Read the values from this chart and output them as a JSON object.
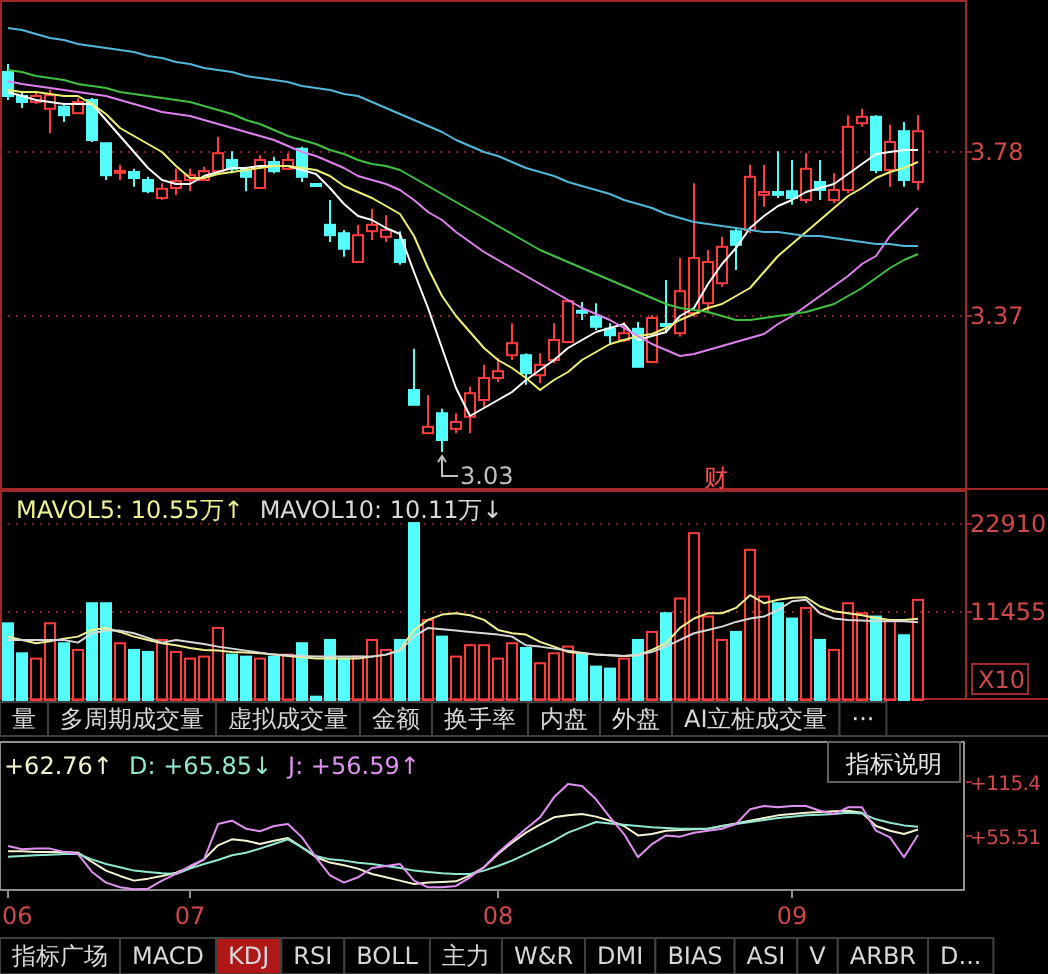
{
  "chart_data": [
    {
      "type": "candlestick",
      "tick_labels": "y",
      "grid": "y",
      "ylim": [
        2.935,
        4.16
      ],
      "yticks": [
        3.37,
        3.78
      ],
      "ohlc": [
        [
          3.98,
          4.0,
          3.91,
          3.92
        ],
        [
          3.92,
          3.93,
          3.89,
          3.905
        ],
        [
          3.905,
          3.93,
          3.9,
          3.92
        ],
        [
          3.888,
          3.935,
          3.827,
          3.922
        ],
        [
          3.893,
          3.9,
          3.855,
          3.872
        ],
        [
          3.877,
          3.915,
          3.877,
          3.905
        ],
        [
          3.91,
          3.915,
          3.805,
          3.81
        ],
        [
          3.802,
          3.802,
          3.71,
          3.722
        ],
        [
          3.728,
          3.748,
          3.71,
          3.733
        ],
        [
          3.73,
          3.738,
          3.693,
          3.715
        ],
        [
          3.71,
          3.718,
          3.677,
          3.682
        ],
        [
          3.665,
          3.702,
          3.66,
          3.688
        ],
        [
          3.69,
          3.738,
          3.672,
          3.707
        ],
        [
          3.71,
          3.738,
          3.682,
          3.722
        ],
        [
          3.71,
          3.743,
          3.71,
          3.732
        ],
        [
          3.732,
          3.818,
          3.727,
          3.777
        ],
        [
          3.76,
          3.782,
          3.727,
          3.738
        ],
        [
          3.735,
          3.743,
          3.682,
          3.718
        ],
        [
          3.69,
          3.772,
          3.69,
          3.76
        ],
        [
          3.755,
          3.768,
          3.727,
          3.732
        ],
        [
          3.738,
          3.777,
          3.735,
          3.76
        ],
        [
          3.788,
          3.793,
          3.705,
          3.718
        ],
        [
          3.7,
          3.7,
          3.696,
          3.698
        ],
        [
          3.598,
          3.66,
          3.555,
          3.572
        ],
        [
          3.577,
          3.585,
          3.518,
          3.538
        ],
        [
          3.505,
          3.598,
          3.505,
          3.572
        ],
        [
          3.582,
          3.638,
          3.56,
          3.598
        ],
        [
          3.568,
          3.622,
          3.555,
          3.585
        ],
        [
          3.56,
          3.582,
          3.498,
          3.505
        ],
        [
          3.185,
          3.288,
          3.148,
          3.148
        ],
        [
          3.077,
          3.172,
          3.077,
          3.093
        ],
        [
          3.127,
          3.138,
          3.03,
          3.06
        ],
        [
          3.088,
          3.127,
          3.077,
          3.105
        ],
        [
          3.118,
          3.193,
          3.077,
          3.177
        ],
        [
          3.16,
          3.248,
          3.143,
          3.215
        ],
        [
          3.215,
          3.265,
          3.205,
          3.232
        ],
        [
          3.272,
          3.352,
          3.26,
          3.302
        ],
        [
          3.272,
          3.277,
          3.198,
          3.227
        ],
        [
          3.222,
          3.277,
          3.202,
          3.248
        ],
        [
          3.26,
          3.352,
          3.252,
          3.31
        ],
        [
          3.305,
          3.41,
          3.302,
          3.407
        ],
        [
          3.383,
          3.405,
          3.36,
          3.38
        ],
        [
          3.368,
          3.402,
          3.335,
          3.343
        ],
        [
          3.338,
          3.352,
          3.302,
          3.322
        ],
        [
          3.31,
          3.355,
          3.305,
          3.327
        ],
        [
          3.338,
          3.355,
          3.243,
          3.243
        ],
        [
          3.255,
          3.372,
          3.252,
          3.365
        ],
        [
          3.35,
          3.46,
          3.327,
          3.348
        ],
        [
          3.327,
          3.515,
          3.318,
          3.432
        ],
        [
          3.377,
          3.702,
          3.368,
          3.515
        ],
        [
          3.402,
          3.535,
          3.377,
          3.505
        ],
        [
          3.452,
          3.568,
          3.443,
          3.543
        ],
        [
          3.582,
          3.588,
          3.485,
          3.548
        ],
        [
          3.585,
          3.748,
          3.577,
          3.718
        ],
        [
          3.673,
          3.748,
          3.643,
          3.68
        ],
        [
          3.68,
          3.782,
          3.665,
          3.673
        ],
        [
          3.682,
          3.76,
          3.648,
          3.665
        ],
        [
          3.66,
          3.777,
          3.652,
          3.738
        ],
        [
          3.705,
          3.76,
          3.66,
          3.685
        ],
        [
          3.66,
          3.727,
          3.652,
          3.685
        ],
        [
          3.685,
          3.872,
          3.677,
          3.843
        ],
        [
          3.852,
          3.888,
          3.843,
          3.868
        ],
        [
          3.868,
          3.872,
          3.727,
          3.735
        ],
        [
          3.735,
          3.848,
          3.693,
          3.805
        ],
        [
          3.832,
          3.855,
          3.693,
          3.71
        ],
        [
          3.705,
          3.872,
          3.685,
          3.832
        ]
      ],
      "colors": [
        "#54fcfc",
        "#54fcfc",
        "#ff3c3c",
        "#ff3c3c",
        "#54fcfc",
        "#ff3c3c",
        "#54fcfc",
        "#54fcfc",
        "#ff3c3c",
        "#54fcfc",
        "#54fcfc",
        "#ff3c3c",
        "#ff3c3c",
        "#ff3c3c",
        "#ff3c3c",
        "#ff3c3c",
        "#54fcfc",
        "#54fcfc",
        "#ff3c3c",
        "#54fcfc",
        "#ff3c3c",
        "#54fcfc",
        "#54fcfc",
        "#54fcfc",
        "#54fcfc",
        "#ff3c3c",
        "#ff3c3c",
        "#ff3c3c",
        "#54fcfc",
        "#54fcfc",
        "#ff3c3c",
        "#54fcfc",
        "#ff3c3c",
        "#ff3c3c",
        "#ff3c3c",
        "#ff3c3c",
        "#ff3c3c",
        "#54fcfc",
        "#ff3c3c",
        "#ff3c3c",
        "#ff3c3c",
        "#54fcfc",
        "#54fcfc",
        "#54fcfc",
        "#ff3c3c",
        "#54fcfc",
        "#ff3c3c",
        "#54fcfc",
        "#ff3c3c",
        "#ff3c3c",
        "#ff3c3c",
        "#ff3c3c",
        "#54fcfc",
        "#ff3c3c",
        "#ff3c3c",
        "#54fcfc",
        "#54fcfc",
        "#ff3c3c",
        "#54fcfc",
        "#ff3c3c",
        "#ff3c3c",
        "#ff3c3c",
        "#54fcfc",
        "#ff3c3c",
        "#54fcfc",
        "#ff3c3c"
      ],
      "series": [
        {
          "type": "line",
          "color": "#ffffff",
          "values": [
            3.93,
            3.92,
            3.91,
            3.905,
            3.9,
            3.9,
            3.9,
            3.86,
            3.82,
            3.78,
            3.74,
            3.71,
            3.7,
            3.7,
            3.72,
            3.73,
            3.74,
            3.74,
            3.745,
            3.745,
            3.745,
            3.735,
            3.725,
            3.69,
            3.65,
            3.62,
            3.61,
            3.59,
            3.575,
            3.48,
            3.39,
            3.29,
            3.19,
            3.12,
            3.14,
            3.16,
            3.18,
            3.21,
            3.235,
            3.26,
            3.29,
            3.31,
            3.33,
            3.34,
            3.35,
            3.31,
            3.32,
            3.33,
            3.37,
            3.39,
            3.45,
            3.5,
            3.54,
            3.59,
            3.62,
            3.645,
            3.66,
            3.68,
            3.69,
            3.7,
            3.725,
            3.75,
            3.775,
            3.78,
            3.785,
            3.785
          ]
        },
        {
          "type": "line",
          "color": "#f0f070",
          "values": [
            3.935,
            3.93,
            3.93,
            3.925,
            3.92,
            3.92,
            3.9,
            3.875,
            3.84,
            3.82,
            3.8,
            3.78,
            3.745,
            3.715,
            3.715,
            3.725,
            3.73,
            3.735,
            3.74,
            3.745,
            3.745,
            3.74,
            3.735,
            3.72,
            3.695,
            3.68,
            3.665,
            3.645,
            3.625,
            3.57,
            3.49,
            3.42,
            3.37,
            3.33,
            3.29,
            3.26,
            3.24,
            3.215,
            3.185,
            3.21,
            3.23,
            3.26,
            3.28,
            3.3,
            3.31,
            3.32,
            3.325,
            3.34,
            3.36,
            3.375,
            3.39,
            3.4,
            3.42,
            3.44,
            3.48,
            3.52,
            3.55,
            3.58,
            3.61,
            3.64,
            3.67,
            3.69,
            3.715,
            3.73,
            3.74,
            3.755
          ]
        },
        {
          "type": "line",
          "color": "#e080f0",
          "values": [
            3.957,
            3.95,
            3.945,
            3.94,
            3.935,
            3.93,
            3.925,
            3.92,
            3.91,
            3.9,
            3.89,
            3.88,
            3.875,
            3.87,
            3.86,
            3.85,
            3.84,
            3.83,
            3.82,
            3.81,
            3.795,
            3.78,
            3.77,
            3.755,
            3.74,
            3.72,
            3.71,
            3.7,
            3.685,
            3.66,
            3.63,
            3.61,
            3.58,
            3.555,
            3.53,
            3.51,
            3.49,
            3.47,
            3.45,
            3.43,
            3.41,
            3.39,
            3.375,
            3.36,
            3.34,
            3.32,
            3.3,
            3.285,
            3.27,
            3.275,
            3.285,
            3.295,
            3.305,
            3.315,
            3.325,
            3.35,
            3.37,
            3.395,
            3.42,
            3.445,
            3.47,
            3.5,
            3.52,
            3.57,
            3.605,
            3.64
          ]
        },
        {
          "type": "line",
          "color": "#40c040",
          "values": [
            3.985,
            3.98,
            3.97,
            3.965,
            3.96,
            3.95,
            3.945,
            3.94,
            3.93,
            3.925,
            3.92,
            3.915,
            3.91,
            3.905,
            3.895,
            3.885,
            3.875,
            3.86,
            3.85,
            3.835,
            3.82,
            3.81,
            3.8,
            3.785,
            3.775,
            3.76,
            3.75,
            3.745,
            3.735,
            3.715,
            3.695,
            3.675,
            3.655,
            3.635,
            3.615,
            3.595,
            3.575,
            3.555,
            3.535,
            3.52,
            3.505,
            3.49,
            3.475,
            3.46,
            3.445,
            3.43,
            3.415,
            3.4,
            3.39,
            3.385,
            3.38,
            3.37,
            3.36,
            3.36,
            3.365,
            3.37,
            3.375,
            3.38,
            3.39,
            3.4,
            3.42,
            3.44,
            3.465,
            3.49,
            3.51,
            3.525
          ]
        },
        {
          "type": "line",
          "color": "#50b8d8",
          "values": [
            4.09,
            4.085,
            4.075,
            4.065,
            4.06,
            4.05,
            4.045,
            4.04,
            4.035,
            4.03,
            4.02,
            4.015,
            4.005,
            4.0,
            3.99,
            3.985,
            3.98,
            3.97,
            3.965,
            3.96,
            3.955,
            3.945,
            3.94,
            3.935,
            3.925,
            3.92,
            3.905,
            3.89,
            3.875,
            3.86,
            3.845,
            3.83,
            3.81,
            3.795,
            3.78,
            3.77,
            3.755,
            3.74,
            3.73,
            3.72,
            3.705,
            3.695,
            3.685,
            3.675,
            3.66,
            3.65,
            3.64,
            3.625,
            3.615,
            3.605,
            3.6,
            3.595,
            3.59,
            3.585,
            3.58,
            3.58,
            3.575,
            3.57,
            3.57,
            3.565,
            3.56,
            3.555,
            3.55,
            3.55,
            3.545,
            3.545
          ]
        }
      ],
      "annotations": [
        "3.03",
        "财"
      ]
    },
    {
      "type": "bar",
      "tick_labels": "y",
      "grid": "y",
      "legend": "top left",
      "ylim": [
        0,
        27300
      ],
      "yticks": [
        11455,
        22910
      ],
      "series": [
        {
          "type": "bar",
          "colors": [
            "#54fcfc",
            "#54fcfc",
            "#ff3c3c",
            "#ff3c3c",
            "#54fcfc",
            "#ff3c3c",
            "#54fcfc",
            "#54fcfc",
            "#ff3c3c",
            "#54fcfc",
            "#54fcfc",
            "#ff3c3c",
            "#ff3c3c",
            "#ff3c3c",
            "#ff3c3c",
            "#ff3c3c",
            "#54fcfc",
            "#54fcfc",
            "#ff3c3c",
            "#54fcfc",
            "#ff3c3c",
            "#54fcfc",
            "#54fcfc",
            "#54fcfc",
            "#54fcfc",
            "#ff3c3c",
            "#ff3c3c",
            "#ff3c3c",
            "#54fcfc",
            "#54fcfc",
            "#ff3c3c",
            "#54fcfc",
            "#ff3c3c",
            "#ff3c3c",
            "#ff3c3c",
            "#ff3c3c",
            "#ff3c3c",
            "#54fcfc",
            "#ff3c3c",
            "#ff3c3c",
            "#ff3c3c",
            "#54fcfc",
            "#54fcfc",
            "#54fcfc",
            "#ff3c3c",
            "#54fcfc",
            "#ff3c3c",
            "#54fcfc",
            "#ff3c3c",
            "#ff3c3c",
            "#ff3c3c",
            "#ff3c3c",
            "#54fcfc",
            "#ff3c3c",
            "#ff3c3c",
            "#54fcfc",
            "#54fcfc",
            "#ff3c3c",
            "#54fcfc",
            "#ff3c3c",
            "#ff3c3c",
            "#ff3c3c",
            "#54fcfc",
            "#ff3c3c",
            "#54fcfc",
            "#ff3c3c"
          ],
          "values": [
            9970,
            6070,
            5380,
            9970,
            7380,
            6510,
            12580,
            12580,
            7380,
            6510,
            6250,
            7810,
            6250,
            5380,
            5640,
            9370,
            5900,
            5640,
            5380,
            5640,
            5900,
            7380,
            430,
            7810,
            5380,
            5640,
            7810,
            6510,
            7810,
            23000,
            10410,
            8240,
            5640,
            7120,
            7120,
            5380,
            7380,
            6770,
            4770,
            6070,
            6940,
            5900,
            4340,
            4080,
            5380,
            7810,
            8850,
            11280,
            13190,
            21690,
            10850,
            7810,
            8850,
            19520,
            13450,
            12580,
            10590,
            11970,
            7810,
            6510,
            12580,
            11280,
            10850,
            10410,
            8420,
            13020
          ]
        },
        {
          "type": "line",
          "name": "MAVOL5: 10.55万↑",
          "color": "#f0f090",
          "values": [
            8240,
            7810,
            7380,
            7630,
            7980,
            8240,
            9110,
            9370,
            8850,
            8240,
            7810,
            7380,
            7120,
            6770,
            6510,
            6420,
            6250,
            6160,
            6070,
            5900,
            5730,
            5550,
            5380,
            5380,
            5380,
            5380,
            5640,
            5900,
            6510,
            9110,
            10410,
            11100,
            11280,
            11020,
            10410,
            9110,
            8680,
            8500,
            7550,
            6940,
            6250,
            6070,
            5900,
            5810,
            5730,
            5810,
            6510,
            7380,
            9370,
            10590,
            11280,
            11280,
            11970,
            13620,
            12580,
            13020,
            13280,
            13360,
            12150,
            11540,
            11280,
            11020,
            10670,
            10410,
            10410,
            10550
          ]
        },
        {
          "type": "line",
          "name": "MAVOL10: 10.11万↓",
          "color": "#d8d8d8",
          "values": [
            7810,
            7810,
            7810,
            7810,
            7810,
            7460,
            8680,
            9020,
            9020,
            8680,
            8070,
            7460,
            7810,
            7550,
            7290,
            6940,
            6680,
            6420,
            6160,
            5900,
            5810,
            5730,
            5640,
            5640,
            5640,
            5640,
            5640,
            5900,
            6420,
            8240,
            9370,
            9200,
            9020,
            8850,
            8680,
            8500,
            8240,
            7120,
            6940,
            6680,
            6420,
            6160,
            5900,
            5810,
            5730,
            5900,
            6250,
            6940,
            7810,
            8680,
            9110,
            9540,
            10150,
            10590,
            10850,
            11710,
            12840,
            13020,
            11280,
            10590,
            10410,
            10330,
            10240,
            10240,
            10240,
            10110
          ]
        }
      ],
      "annotations": [
        "X10",
        "量",
        "多周期成交量",
        "虚拟成交量",
        "金额",
        "换手率",
        "内盘",
        "外盘",
        "AI立桩成交量",
        "···"
      ]
    },
    {
      "type": "line",
      "legend": "top left",
      "ylim": [
        -4.4,
        159.8
      ],
      "yticks": [
        {
          "value": 115.4,
          "label": "+115.4"
        },
        {
          "value": 55.51,
          "label": "+55.51"
        }
      ],
      "categories": [
        "06",
        null,
        null,
        null,
        null,
        null,
        null,
        null,
        null,
        null,
        null,
        null,
        null,
        "07",
        null,
        null,
        null,
        null,
        null,
        null,
        null,
        null,
        null,
        null,
        null,
        null,
        null,
        null,
        null,
        null,
        null,
        null,
        null,
        null,
        null,
        "08",
        null,
        null,
        null,
        null,
        null,
        null,
        null,
        null,
        null,
        null,
        null,
        null,
        null,
        null,
        null,
        null,
        null,
        null,
        null,
        null,
        "09",
        null,
        null,
        null,
        null,
        null,
        null,
        null,
        null,
        null
      ],
      "series": [
        {
          "name": "+62.76↑",
          "color": "#f4f4d0",
          "values": [
            38.5,
            38.5,
            37.8,
            37.8,
            37.8,
            37.0,
            26.7,
            17.1,
            11.2,
            6.0,
            8.2,
            11.2,
            14.8,
            20.8,
            29.6,
            45.2,
            51.8,
            50.3,
            46.6,
            50.3,
            53.3,
            42.9,
            31.9,
            26.0,
            23.0,
            19.3,
            13.4,
            9.7,
            6.0,
            2.3,
            3.8,
            4.5,
            5.2,
            11.9,
            20.8,
            35.5,
            48.1,
            59.2,
            68.1,
            76.2,
            78.4,
            79.9,
            77.0,
            72.5,
            66.6,
            56.2,
            57.7,
            61.4,
            62.2,
            62.9,
            63.6,
            66.6,
            69.5,
            72.5,
            75.5,
            78.4,
            79.9,
            81.4,
            82.1,
            82.9,
            83.6,
            81.4,
            66.6,
            61.4,
            57.7,
            62.76
          ]
        },
        {
          "name": "D: +65.85↓",
          "color": "#90e8d0",
          "values": [
            32.6,
            33.3,
            34.1,
            34.8,
            35.5,
            35.5,
            29.6,
            24.5,
            20.8,
            17.1,
            15.6,
            14.1,
            13.4,
            19.3,
            24.5,
            28.9,
            34.1,
            37.0,
            41.5,
            46.6,
            51.8,
            42.9,
            33.3,
            29.6,
            28.2,
            25.9,
            24.5,
            22.2,
            20.0,
            17.1,
            15.6,
            14.1,
            13.4,
            13.4,
            17.1,
            22.2,
            28.2,
            35.5,
            42.9,
            50.3,
            59.2,
            65.1,
            71.0,
            69.5,
            68.1,
            66.6,
            65.1,
            64.4,
            63.6,
            63.6,
            63.6,
            66.6,
            68.8,
            71.0,
            73.3,
            75.5,
            77.0,
            78.4,
            79.2,
            79.9,
            81.4,
            80.6,
            74.0,
            70.3,
            67.3,
            65.85
          ]
        },
        {
          "name": "J: +56.59↑",
          "color": "#e090f0",
          "values": [
            44.4,
            40.7,
            41.5,
            41.5,
            37.8,
            35.5,
            15.6,
            3.8,
            -1.4,
            -3.6,
            -2.9,
            6.0,
            13.4,
            22.2,
            29.6,
            68.8,
            72.5,
            63.6,
            60.7,
            66.6,
            68.8,
            54.0,
            31.9,
            11.9,
            3.8,
            9.7,
            20.0,
            22.2,
            24.5,
            6.0,
            -1.4,
            -1.4,
            0.1,
            9.7,
            20.8,
            37.0,
            50.3,
            63.6,
            76.2,
            98.4,
            113.2,
            110.9,
            96.2,
            76.2,
            57.7,
            31.9,
            46.6,
            56.2,
            54.8,
            59.2,
            61.4,
            63.6,
            68.8,
            85.1,
            88.8,
            87.3,
            88.8,
            88.8,
            83.6,
            79.9,
            87.3,
            87.3,
            61.4,
            54.0,
            31.9,
            56.59
          ]
        }
      ],
      "annotations": [
        "指标说明",
        "指标广场",
        "MACD",
        "KDJ",
        "RSI",
        "BOLL",
        "主力",
        "W&R",
        "DMI",
        "BIAS",
        "ASI",
        "V",
        "ARBR",
        "D..."
      ]
    }
  ]
}
